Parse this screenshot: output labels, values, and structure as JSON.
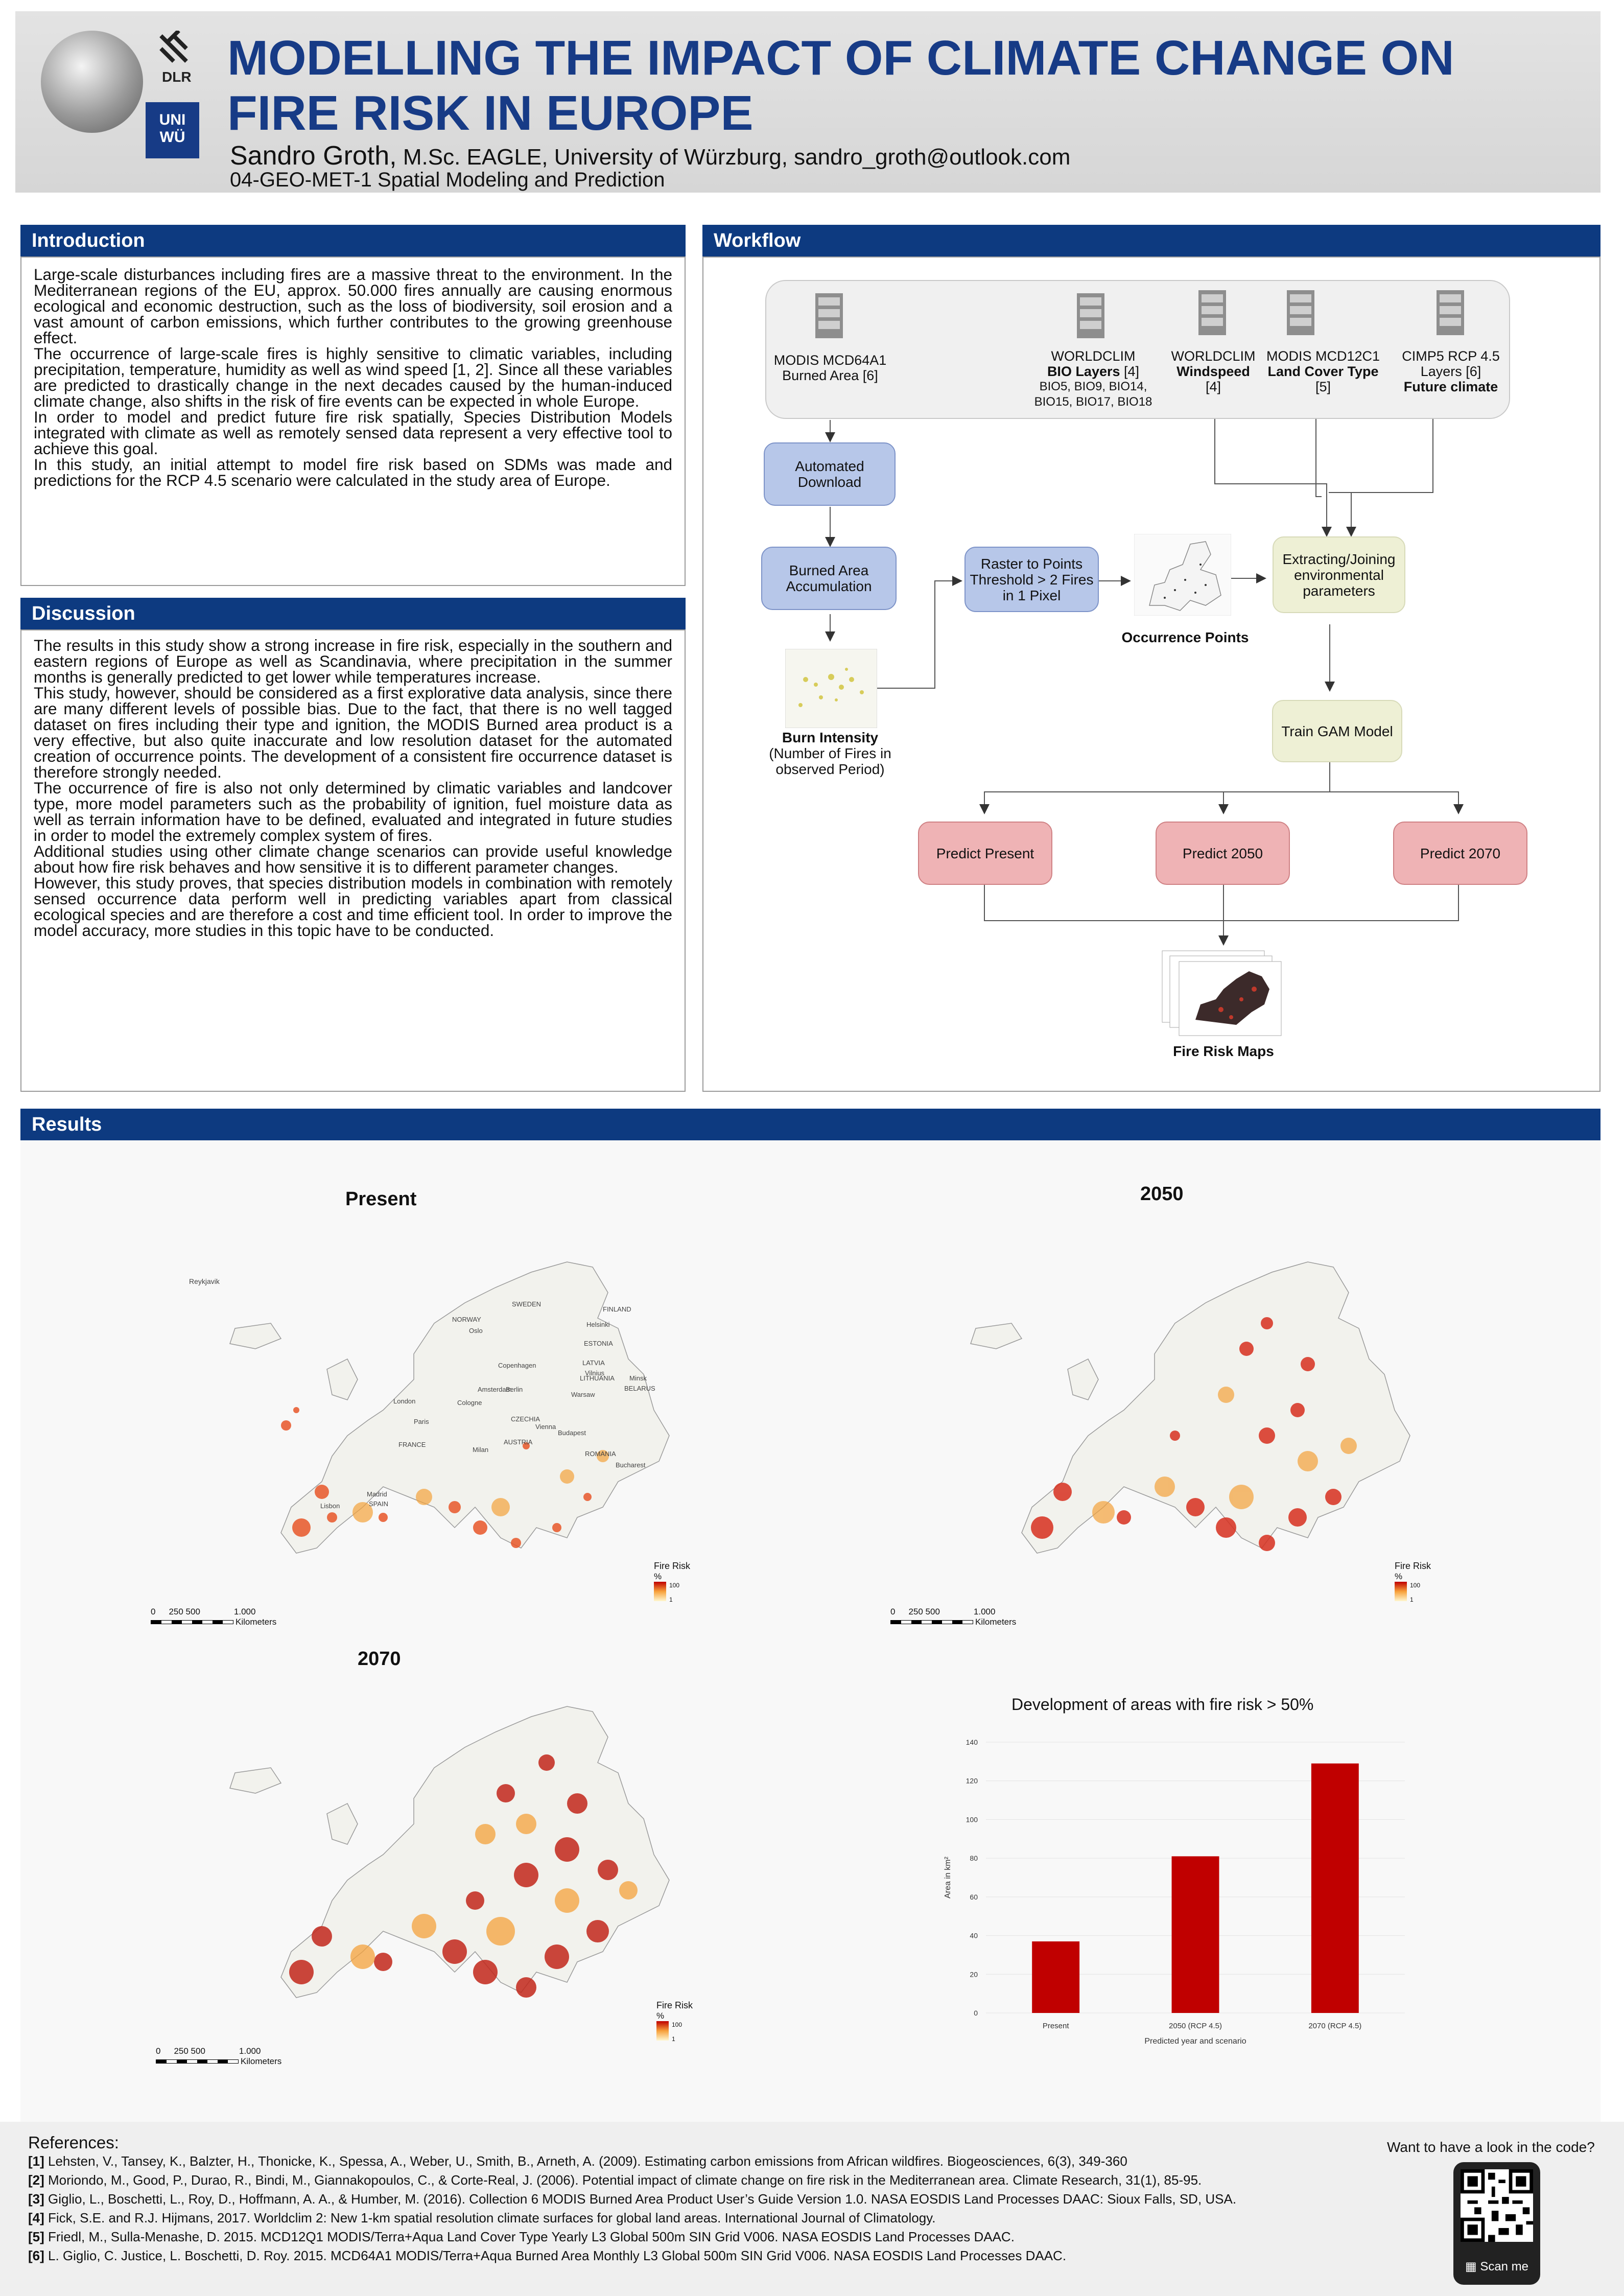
{
  "header": {
    "title": "MODELLING THE IMPACT OF CLIMATE CHANGE ON FIRE RISK IN EUROPE",
    "author_name": "Sandro Groth,",
    "author_rest": " M.Sc. EAGLE, University of Würzburg, sandro_groth@outlook.com",
    "course": "04-GEO-MET-1 Spatial Modeling and Prediction",
    "logo_dlr": "DLR",
    "logo_uni": "UNI WÜ"
  },
  "introduction": {
    "heading": "Introduction",
    "text": "Large-scale disturbances including fires are a massive threat to the environment. In the Mediterranean regions of the EU, approx. 50.000 fires annually are causing enormous ecological and economic destruction, such as the loss of biodiversity, soil erosion and a vast amount of carbon emissions, which further contributes to the growing greenhouse effect.\nThe occurrence of large-scale fires is highly sensitive to climatic variables, including precipitation, temperature, humidity as well as wind speed [1, 2]. Since all these variables are predicted to drastically change in the next decades caused by the human-induced climate change, also shifts in the risk of fire events can be expected in whole Europe.\nIn order to model and predict future fire risk spatially, Species Distribution Models integrated with climate as well as remotely sensed data represent a very effective tool to achieve this goal.\nIn this study, an initial attempt to model fire risk based on SDMs was made and predictions for the RCP 4.5 scenario were calculated in the study area of Europe."
  },
  "discussion": {
    "heading": "Discussion",
    "text": "The results in this study show a strong increase in fire risk, especially in the southern and eastern regions of Europe as well as Scandinavia, where precipitation in the summer months is generally predicted to get lower while temperatures increase.\nThis study, however, should be considered as a first explorative data analysis, since there are many different levels of possible bias. Due to the fact, that there is no well tagged dataset on fires including their type and ignition, the MODIS Burned area product is a very effective, but also quite inaccurate and low resolution dataset for the automated creation of occurrence points. The development of a consistent fire occurrence dataset is therefore strongly needed.\nThe occurrence of fire is also not only determined by climatic variables and landcover type, more model parameters such as the probability of ignition, fuel moisture data as well as terrain information have to be defined, evaluated and integrated in future studies in order to model the extremely complex system of fires.\nAdditional studies using other climate change scenarios can provide useful knowledge about how fire risk behaves and how sensitive it is to different parameter changes.\nHowever, this study proves, that species distribution models in combination with remotely sensed occurrence data perform well in predicting variables apart from classical ecological species and are therefore a cost and time efficient tool. In order to improve the model accuracy, more studies in this topic have to be conducted."
  },
  "workflow": {
    "heading": "Workflow",
    "sources": [
      {
        "line1": "MODIS MCD64A1",
        "line2": "Burned Area [6]",
        "bold": "",
        "line3": ""
      },
      {
        "line1": "WORLDCLIM",
        "bold": "BIO Layers",
        "boldtail": " [4]",
        "line3": "BIO5, BIO9, BIO14,",
        "line4": "BIO15, BIO17, BIO18"
      },
      {
        "line1": "WORLDCLIM",
        "bold": "Windspeed",
        "line3": "[4]"
      },
      {
        "line1": "MODIS MCD12C1",
        "bold": "Land Cover Type",
        "line3": "[5]"
      },
      {
        "line1": "CIMP5 RCP 4.5",
        "line2": "Layers [6]",
        "bold": "Future climate"
      }
    ],
    "automated_download": "Automated Download",
    "burned_area_accumulation": "Burned Area Accumulation",
    "raster_to_points": "Raster to Points Threshold > 2 Fires in 1 Pixel",
    "occurrence_points": "Occurrence Points",
    "extracting": "Extracting/Joining environmental parameters",
    "burn_intensity_title": "Burn Intensity",
    "burn_intensity_sub": "(Number of Fires in observed Period)",
    "train_gam": "Train GAM Model",
    "predict_present": "Predict Present",
    "predict_2050": "Predict 2050",
    "predict_2070": "Predict 2070",
    "fire_risk_maps": "Fire Risk Maps"
  },
  "results": {
    "heading": "Results",
    "maps": [
      {
        "title": "Present"
      },
      {
        "title": "2050"
      },
      {
        "title": "2070"
      }
    ],
    "legend_title": "Fire Risk",
    "legend_unit": "%",
    "legend_max": "100",
    "legend_min": "1",
    "scale_labels": [
      "0",
      "250 500",
      "1.000"
    ],
    "scale_unit": "Kilometers",
    "place_labels": [
      "Reykjavik",
      "NORWAY",
      "SWEDEN",
      "FINLAND",
      "Oslo",
      "Helsinki",
      "ESTONIA",
      "Copenhagen",
      "LATVIA",
      "LITHUANIA",
      "Vilnius",
      "Minsk",
      "BELARUS",
      "Amsterdam",
      "Berlin",
      "Warsaw",
      "London",
      "Cologne",
      "Paris",
      "CZECHIA",
      "Vienna",
      "Budapest",
      "FRANCE",
      "Milan",
      "AUSTRIA",
      "ROMANIA",
      "Bucharest",
      "Madrid",
      "Lisbon",
      "SPAIN"
    ]
  },
  "chart_data": {
    "type": "bar",
    "title": "Development of areas with fire risk > 50%",
    "categories": [
      "Present",
      "2050 (RCP 4.5)",
      "2070 (RCP 4.5)"
    ],
    "values": [
      37,
      81,
      129
    ],
    "xlabel": "Predicted year and scenario",
    "ylabel": "Area in km²",
    "ylim": [
      0,
      140
    ],
    "yticks": [
      0,
      20,
      40,
      60,
      80,
      100,
      120,
      140
    ],
    "bar_color": "#c00000",
    "grid": true
  },
  "references": {
    "heading": "References:",
    "items": [
      {
        "num": "[1]",
        "text": " Lehsten, V., Tansey, K., Balzter, H., Thonicke, K., Spessa, A., Weber, U., Smith, B., Arneth, A. (2009). Estimating carbon emissions from African wildfires. Biogeosciences, 6(3), 349-360"
      },
      {
        "num": "[2]",
        "text": " Moriondo, M., Good, P., Durao, R., Bindi, M., Giannakopoulos, C., & Corte-Real, J. (2006). Potential impact of climate change on fire risk in the Mediterranean area. Climate Research, 31(1), 85-95."
      },
      {
        "num": "[3]",
        "text": " Giglio, L., Boschetti, L., Roy, D., Hoffmann, A. A., & Humber, M. (2016). Collection 6 MODIS Burned Area Product User’s Guide Version 1.0. NASA EOSDIS Land Processes DAAC: Sioux Falls, SD, USA."
      },
      {
        "num": "[4]",
        "text": " Fick, S.E. and R.J. Hijmans, 2017. Worldclim 2: New 1-km spatial resolution climate surfaces for global land areas. International Journal of Climatology."
      },
      {
        "num": "[5]",
        "text": " Friedl, M., Sulla-Menashe, D. 2015. MCD12Q1 MODIS/Terra+Aqua Land Cover Type Yearly L3 Global 500m SIN Grid V006. NASA EOSDIS Land Processes DAAC."
      },
      {
        "num": "[6]",
        "text": " L. Giglio, C. Justice, L. Boschetti, D. Roy. 2015. MCD64A1 MODIS/Terra+Aqua Burned Area Monthly L3 Global 500m SIN Grid V006. NASA EOSDIS Land Processes DAAC."
      }
    ],
    "code_prompt": "Want to have a look in the code?",
    "scan_me": "Scan me"
  }
}
